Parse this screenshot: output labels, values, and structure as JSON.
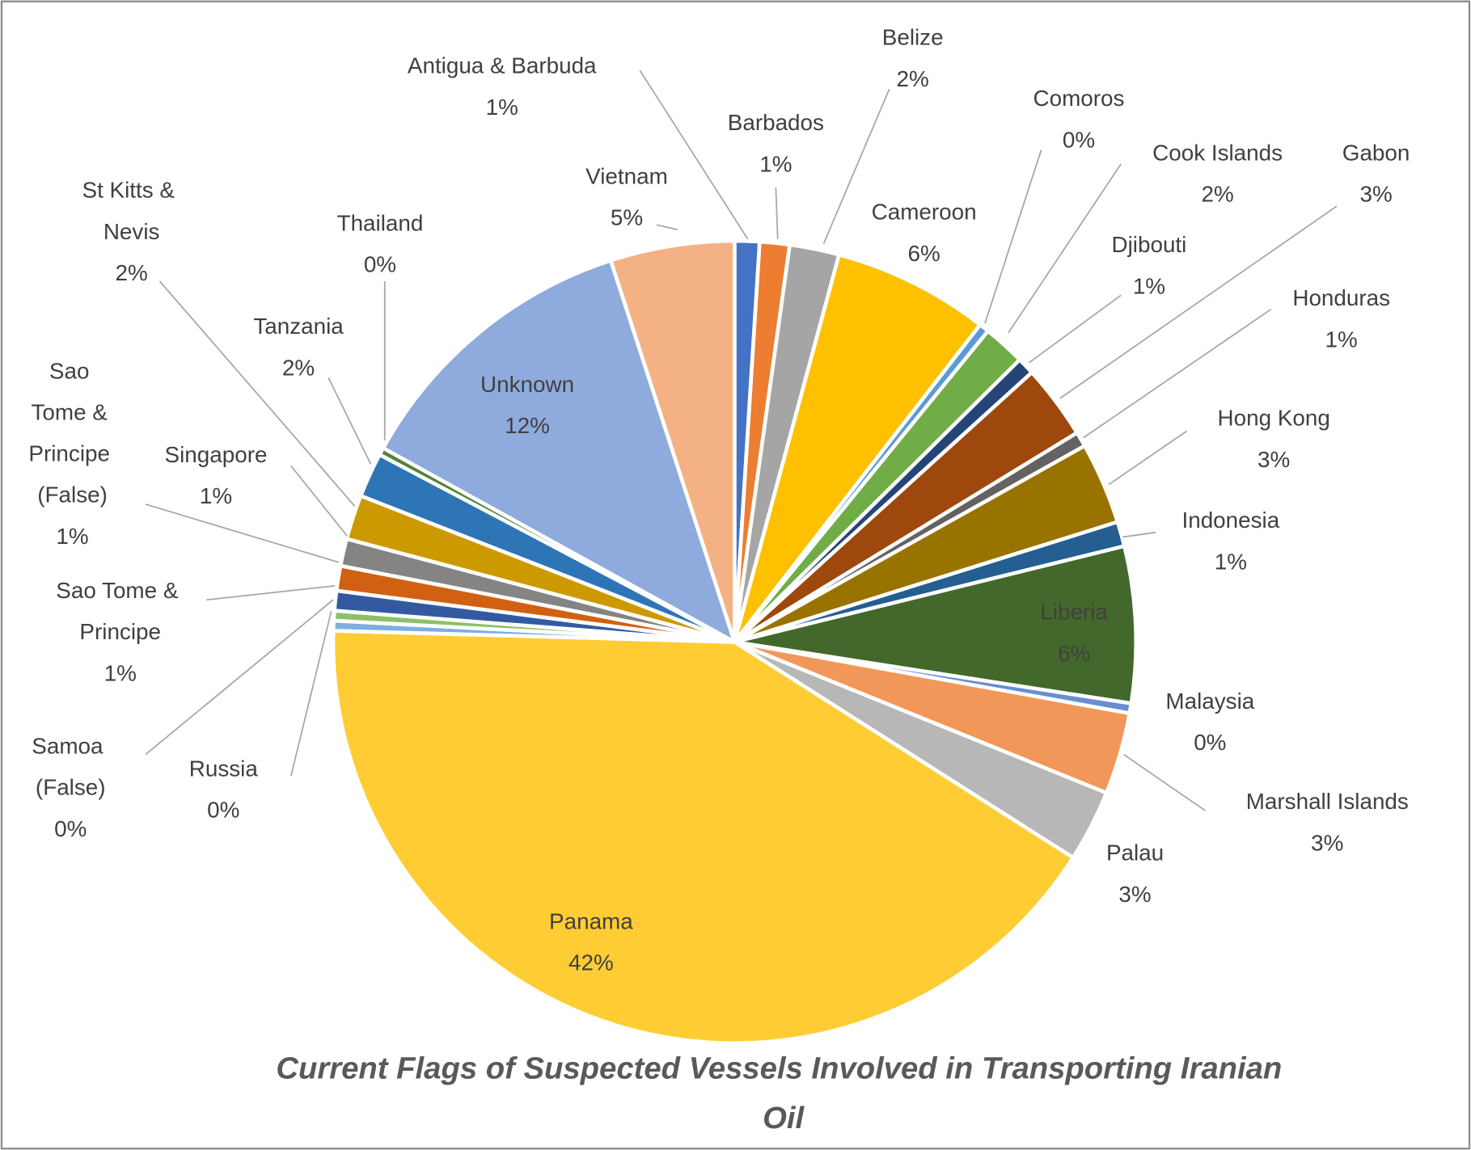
{
  "chart_data": {
    "type": "pie",
    "title": "Current Flags of  Suspected Vessels Involved in Transporting Iranian Oil",
    "categories": [
      "Antigua & Barbuda",
      "Barbados",
      "Belize",
      "Cameroon",
      "Comoros",
      "Cook Islands",
      "Djibouti",
      "Gabon",
      "Honduras",
      "Hong Kong",
      "Indonesia",
      "Liberia",
      "Malaysia",
      "Marshall Islands",
      "Palau",
      "Panama",
      "Russia",
      "Samoa (False)",
      "Sao Tome & Principe",
      "Sao Tome & Principe (False)",
      "Singapore",
      "St Kitts & Nevis",
      "Tanzania",
      "Thailand",
      "Unknown",
      "Vietnam"
    ],
    "values": [
      1.0,
      1.2,
      2.0,
      6.3,
      0.4,
      1.7,
      0.7,
      3.0,
      0.6,
      3.3,
      1.0,
      6.3,
      0.4,
      3.3,
      2.9,
      41.5,
      0.4,
      0.4,
      0.8,
      1.0,
      1.1,
      1.8,
      1.8,
      0.3,
      12.0,
      5.0
    ],
    "value_labels": [
      "1%",
      "1%",
      "2%",
      "6%",
      "0%",
      "2%",
      "1%",
      "3%",
      "1%",
      "3%",
      "1%",
      "6%",
      "0%",
      "3%",
      "3%",
      "42%",
      "0%",
      "0%",
      "1%",
      "1%",
      "1%",
      "2%",
      "2%",
      "0%",
      "12%",
      "5%"
    ],
    "colors": [
      "#4472c4",
      "#ed7d31",
      "#a5a5a5",
      "#ffc000",
      "#5b9bd5",
      "#70ad47",
      "#264478",
      "#9e480e",
      "#636363",
      "#997300",
      "#255e91",
      "#43682b",
      "#698ed0",
      "#f1975a",
      "#b7b7b7",
      "#ffcd33",
      "#7cafdd",
      "#8cc168",
      "#335aa1",
      "#d26012",
      "#848484",
      "#cc9a00",
      "#2e75b6",
      "#548235",
      "#8faadc",
      "#f4b183"
    ]
  }
}
